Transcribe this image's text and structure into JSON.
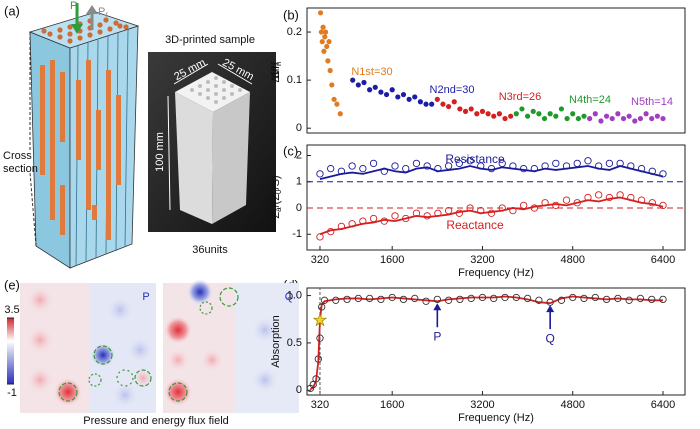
{
  "panel_labels": [
    "(a)",
    "(b)",
    "(c)",
    "(d)",
    "(e)"
  ],
  "illustration": {
    "incident": "P",
    "incident_sub": "i",
    "reflected": "P",
    "reflected_sub": "r",
    "cross_section": [
      "Cross",
      "section"
    ]
  },
  "sample": {
    "title": "3D-printed sample",
    "width": "25 mm",
    "depth": "25 mm",
    "height": "100 mm",
    "caption": "36units"
  },
  "field": {
    "maps": [
      "P",
      "Q"
    ],
    "colorbar_ticks": [
      3.5,
      -1
    ],
    "caption": "Pressure and energy flux field"
  },
  "chart_data": [
    {
      "type": "scatter",
      "ylabel": "Δf/f",
      "ylabel_sub": "n",
      "xlim": [
        90,
        6790
      ],
      "ylim": [
        -0.01,
        0.25
      ],
      "yticks": [
        0,
        0.1,
        0.2
      ],
      "series": [
        {
          "name": "N1st=30",
          "color": "#e07b20",
          "x": [
            330,
            345,
            360,
            375,
            390,
            405,
            420,
            440,
            460,
            480,
            500,
            530,
            570,
            620,
            680
          ],
          "values": [
            0.24,
            0.2,
            0.18,
            0.21,
            0.16,
            0.19,
            0.2,
            0.17,
            0.14,
            0.18,
            0.12,
            0.09,
            0.06,
            0.05,
            0.03
          ]
        },
        {
          "name": "N2nd=30",
          "color": "#1c1ca8",
          "x": [
            900,
            1000,
            1100,
            1200,
            1300,
            1400,
            1500,
            1600,
            1700,
            1800,
            1900,
            2000,
            2100,
            2200,
            2300
          ],
          "values": [
            0.1,
            0.09,
            0.095,
            0.08,
            0.085,
            0.075,
            0.07,
            0.08,
            0.065,
            0.07,
            0.06,
            0.065,
            0.055,
            0.05,
            0.05
          ]
        },
        {
          "name": "N3rd=26",
          "color": "#d42020",
          "x": [
            2400,
            2500,
            2600,
            2700,
            2800,
            2900,
            3000,
            3100,
            3200,
            3300,
            3400,
            3500,
            3600,
            3700
          ],
          "values": [
            0.06,
            0.05,
            0.045,
            0.055,
            0.04,
            0.035,
            0.04,
            0.03,
            0.035,
            0.03,
            0.025,
            0.03,
            0.02,
            0.025
          ]
        },
        {
          "name": "N4th=24",
          "color": "#1f9a2a",
          "x": [
            3800,
            3900,
            4000,
            4100,
            4200,
            4300,
            4400,
            4500,
            4600,
            4700,
            4800,
            4900,
            5000
          ],
          "values": [
            0.03,
            0.04,
            0.025,
            0.035,
            0.03,
            0.02,
            0.03,
            0.025,
            0.04,
            0.02,
            0.03,
            0.02,
            0.025
          ]
        },
        {
          "name": "N5th=14",
          "color": "#a23cc0",
          "x": [
            5100,
            5200,
            5300,
            5400,
            5500,
            5600,
            5700,
            5800,
            5900,
            6000,
            6100,
            6200,
            6300,
            6400
          ],
          "values": [
            0.02,
            0.03,
            0.015,
            0.025,
            0.02,
            0.03,
            0.02,
            0.025,
            0.015,
            0.02,
            0.03,
            0.02,
            0.025,
            0.02
          ]
        }
      ]
    },
    {
      "type": "line",
      "xlabel": "Frequency (Hz)",
      "ylabel": [
        "Z",
        "a",
        "/(Z",
        "0",
        "/S)"
      ],
      "x": [
        320,
        510,
        700,
        890,
        1080,
        1270,
        1460,
        1650,
        1840,
        2030,
        2220,
        2410,
        2600,
        2790,
        2980,
        3170,
        3360,
        3550,
        3740,
        3930,
        4120,
        4310,
        4500,
        4690,
        4880,
        5070,
        5260,
        5450,
        5640,
        5830,
        6020,
        6210,
        6400
      ],
      "xlim": [
        90,
        6790
      ],
      "xticks": [
        320,
        1600,
        3200,
        4800,
        6400
      ],
      "ylim": [
        -1.6,
        2.4
      ],
      "yticks": [
        -1,
        0,
        1,
        2
      ],
      "series": [
        {
          "name": "Resistance",
          "color": "#1a1a9a",
          "reference": 1,
          "values": [
            1.1,
            1.2,
            1.3,
            1.35,
            1.3,
            1.4,
            1.5,
            1.4,
            1.35,
            1.5,
            1.55,
            1.4,
            1.45,
            1.5,
            1.6,
            1.5,
            1.45,
            1.55,
            1.5,
            1.45,
            1.4,
            1.5,
            1.45,
            1.5,
            1.55,
            1.6,
            1.5,
            1.45,
            1.6,
            1.5,
            1.4,
            1.3,
            1.2
          ],
          "markers": [
            1.3,
            1.5,
            1.4,
            1.6,
            1.5,
            1.7,
            1.4,
            1.6,
            1.5,
            1.7,
            1.6,
            1.5,
            1.6,
            1.7,
            1.8,
            1.6,
            1.5,
            1.7,
            1.6,
            1.5,
            1.5,
            1.6,
            1.7,
            1.6,
            1.7,
            1.8,
            1.6,
            1.7,
            1.7,
            1.6,
            1.5,
            1.4,
            1.3
          ]
        },
        {
          "name": "Reactance",
          "color": "#d42020",
          "reference": 0,
          "values": [
            -1.0,
            -0.85,
            -0.8,
            -0.7,
            -0.6,
            -0.55,
            -0.45,
            -0.5,
            -0.4,
            -0.3,
            -0.35,
            -0.3,
            -0.25,
            -0.15,
            -0.1,
            -0.2,
            -0.15,
            -0.1,
            0.0,
            -0.05,
            0.05,
            0.1,
            0.15,
            0.1,
            0.2,
            0.3,
            0.25,
            0.35,
            0.4,
            0.3,
            0.2,
            0.15,
            0.05
          ],
          "markers": [
            -1.1,
            -0.9,
            -0.7,
            -0.6,
            -0.5,
            -0.4,
            -0.5,
            -0.3,
            -0.4,
            -0.2,
            -0.3,
            -0.2,
            -0.1,
            -0.2,
            0.0,
            -0.1,
            -0.2,
            0.0,
            -0.1,
            0.1,
            0.0,
            0.2,
            0.1,
            0.3,
            0.2,
            0.4,
            0.5,
            0.4,
            0.5,
            0.4,
            0.3,
            0.2,
            0.1
          ]
        }
      ]
    },
    {
      "type": "line",
      "xlabel": "Frequency (Hz)",
      "ylabel": "Absorption",
      "x": [
        150,
        200,
        250,
        290,
        320,
        350,
        400,
        600,
        800,
        1000,
        1200,
        1400,
        1600,
        1800,
        2000,
        2200,
        2400,
        2600,
        2800,
        3000,
        3200,
        3400,
        3600,
        3800,
        4000,
        4200,
        4400,
        4600,
        4800,
        5000,
        5200,
        5400,
        5600,
        5800,
        6000,
        6200,
        6400
      ],
      "xlim": [
        90,
        6790
      ],
      "xticks": [
        320,
        1600,
        3200,
        4800,
        6400
      ],
      "ylim": [
        -0.05,
        1.08
      ],
      "yticks": [
        0,
        0.5,
        {
          "value": 1,
          "label": "1.0"
        }
      ],
      "reference_x": 320,
      "highlight": {
        "x": 320,
        "y": 0.74
      },
      "annotations": [
        {
          "text": "P",
          "x": 2400,
          "y": 0.94
        },
        {
          "text": "Q",
          "x": 4400,
          "y": 0.92
        }
      ],
      "series": [
        {
          "color": "#d42020",
          "values": [
            0.01,
            0.03,
            0.1,
            0.3,
            0.74,
            0.9,
            0.94,
            0.96,
            0.97,
            0.97,
            0.96,
            0.97,
            0.98,
            0.97,
            0.96,
            0.95,
            0.94,
            0.96,
            0.97,
            0.98,
            0.98,
            0.98,
            0.99,
            0.98,
            0.96,
            0.93,
            0.92,
            0.97,
            0.99,
            0.98,
            0.97,
            0.96,
            0.97,
            0.96,
            0.96,
            0.95,
            0.95
          ]
        },
        {
          "color": "#333333",
          "markers": [
            0.02,
            0.06,
            0.12,
            0.33,
            0.55,
            0.88,
            0.95,
            0.95,
            0.96,
            0.97,
            0.97,
            0.96,
            0.98,
            0.96,
            0.97,
            0.94,
            0.96,
            0.95,
            0.96,
            0.97,
            0.98,
            0.97,
            0.98,
            0.98,
            0.97,
            0.95,
            0.93,
            0.95,
            0.98,
            0.97,
            0.98,
            0.96,
            0.97,
            0.95,
            0.97,
            0.96,
            0.96
          ]
        }
      ]
    }
  ]
}
